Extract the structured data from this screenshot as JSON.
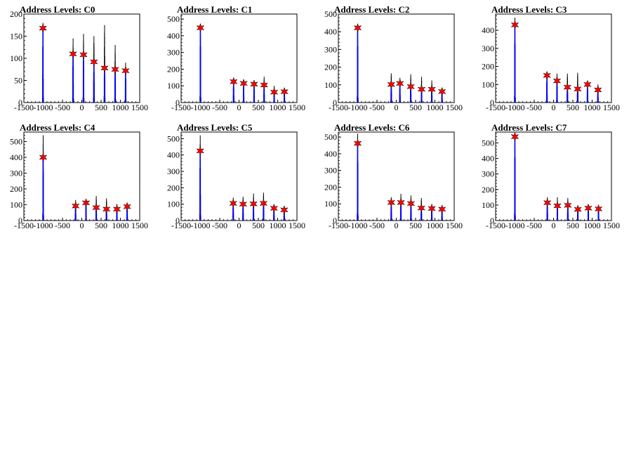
{
  "chart_data": [
    {
      "type": "bar",
      "title": "Address Levels: C0",
      "xlim": [
        -1500,
        1500
      ],
      "ylim": [
        0,
        200
      ],
      "xticks": [
        -1500,
        -1000,
        -500,
        0,
        500,
        1000,
        1500
      ],
      "yticks": [
        0,
        50,
        100,
        150,
        200
      ],
      "peaks": [
        {
          "x": -1005,
          "y": 180,
          "star": 168
        },
        {
          "x": -225,
          "y": 145,
          "star": 110
        },
        {
          "x": 45,
          "y": 155,
          "star": 108
        },
        {
          "x": 315,
          "y": 150,
          "star": 92
        },
        {
          "x": 590,
          "y": 175,
          "star": 78
        },
        {
          "x": 865,
          "y": 130,
          "star": 75
        },
        {
          "x": 1135,
          "y": 90,
          "star": 72
        }
      ]
    },
    {
      "type": "bar",
      "title": "Address Levels: C1",
      "xlim": [
        -1500,
        1500
      ],
      "ylim": [
        0,
        530
      ],
      "xticks": [
        -1500,
        -1000,
        -500,
        0,
        500,
        1000,
        1500
      ],
      "yticks": [
        0,
        100,
        200,
        300,
        400,
        500
      ],
      "peaks": [
        {
          "x": -1000,
          "y": 470,
          "star": 448
        },
        {
          "x": -140,
          "y": 130,
          "star": 125
        },
        {
          "x": 120,
          "y": 130,
          "star": 115
        },
        {
          "x": 390,
          "y": 120,
          "star": 110
        },
        {
          "x": 650,
          "y": 155,
          "star": 105
        },
        {
          "x": 910,
          "y": 100,
          "star": 62
        },
        {
          "x": 1175,
          "y": 85,
          "star": 65
        }
      ]
    },
    {
      "type": "bar",
      "title": "Address Levels: C2",
      "xlim": [
        -1500,
        1500
      ],
      "ylim": [
        0,
        500
      ],
      "xticks": [
        -1500,
        -1000,
        -500,
        0,
        500,
        1000,
        1500
      ],
      "yticks": [
        0,
        100,
        200,
        300,
        400,
        500
      ],
      "peaks": [
        {
          "x": -1000,
          "y": 435,
          "star": 422
        },
        {
          "x": -130,
          "y": 165,
          "star": 102
        },
        {
          "x": 95,
          "y": 140,
          "star": 108
        },
        {
          "x": 375,
          "y": 160,
          "star": 90
        },
        {
          "x": 655,
          "y": 145,
          "star": 75
        },
        {
          "x": 920,
          "y": 125,
          "star": 75
        },
        {
          "x": 1185,
          "y": 75,
          "star": 62
        }
      ]
    },
    {
      "type": "bar",
      "title": "Address Levels: C3",
      "xlim": [
        -1500,
        1500
      ],
      "ylim": [
        0,
        490
      ],
      "xticks": [
        -1500,
        -1000,
        -500,
        0,
        500,
        1000,
        1500
      ],
      "yticks": [
        0,
        100,
        200,
        300,
        400
      ],
      "peaks": [
        {
          "x": -1000,
          "y": 470,
          "star": 430
        },
        {
          "x": -170,
          "y": 160,
          "star": 150
        },
        {
          "x": 90,
          "y": 160,
          "star": 120
        },
        {
          "x": 360,
          "y": 160,
          "star": 85
        },
        {
          "x": 625,
          "y": 165,
          "star": 75
        },
        {
          "x": 880,
          "y": 105,
          "star": 100
        },
        {
          "x": 1150,
          "y": 100,
          "star": 70
        }
      ]
    },
    {
      "type": "bar",
      "title": "Address Levels: C4",
      "xlim": [
        -1500,
        1500
      ],
      "ylim": [
        0,
        560
      ],
      "xticks": [
        -1500,
        -1000,
        -500,
        0,
        500,
        1000,
        1500
      ],
      "yticks": [
        0,
        100,
        200,
        300,
        400,
        500
      ],
      "peaks": [
        {
          "x": -1000,
          "y": 540,
          "star": 400
        },
        {
          "x": -160,
          "y": 130,
          "star": 92
        },
        {
          "x": 110,
          "y": 125,
          "star": 112
        },
        {
          "x": 375,
          "y": 155,
          "star": 82
        },
        {
          "x": 640,
          "y": 140,
          "star": 72
        },
        {
          "x": 910,
          "y": 105,
          "star": 72
        },
        {
          "x": 1175,
          "y": 95,
          "star": 88
        }
      ]
    },
    {
      "type": "bar",
      "title": "Address Levels: C5",
      "xlim": [
        -1500,
        1500
      ],
      "ylim": [
        0,
        540
      ],
      "xticks": [
        -1500,
        -1000,
        -500,
        0,
        500,
        1000,
        1500
      ],
      "yticks": [
        0,
        100,
        200,
        300,
        400,
        500
      ],
      "peaks": [
        {
          "x": -1005,
          "y": 520,
          "star": 425
        },
        {
          "x": -150,
          "y": 140,
          "star": 105
        },
        {
          "x": 105,
          "y": 145,
          "star": 100
        },
        {
          "x": 375,
          "y": 165,
          "star": 102
        },
        {
          "x": 635,
          "y": 170,
          "star": 105
        },
        {
          "x": 905,
          "y": 95,
          "star": 75
        },
        {
          "x": 1170,
          "y": 80,
          "star": 65
        }
      ]
    },
    {
      "type": "bar",
      "title": "Address Levels: C6",
      "xlim": [
        -1500,
        1500
      ],
      "ylim": [
        0,
        530
      ],
      "xticks": [
        -1500,
        -1000,
        -500,
        0,
        500,
        1000,
        1500
      ],
      "yticks": [
        0,
        100,
        200,
        300,
        400,
        500
      ],
      "peaks": [
        {
          "x": -1000,
          "y": 520,
          "star": 462
        },
        {
          "x": -130,
          "y": 140,
          "star": 108
        },
        {
          "x": 120,
          "y": 160,
          "star": 108
        },
        {
          "x": 380,
          "y": 150,
          "star": 102
        },
        {
          "x": 650,
          "y": 135,
          "star": 75
        },
        {
          "x": 920,
          "y": 100,
          "star": 72
        },
        {
          "x": 1185,
          "y": 75,
          "star": 68
        }
      ]
    },
    {
      "type": "bar",
      "title": "Address Levels: C7",
      "xlim": [
        -1500,
        1500
      ],
      "ylim": [
        0,
        570
      ],
      "xticks": [
        -1500,
        -1000,
        -500,
        0,
        500,
        1000,
        1500
      ],
      "yticks": [
        0,
        100,
        200,
        300,
        400,
        500
      ],
      "peaks": [
        {
          "x": -1000,
          "y": 550,
          "star": 540
        },
        {
          "x": -160,
          "y": 150,
          "star": 115
        },
        {
          "x": 100,
          "y": 150,
          "star": 95
        },
        {
          "x": 370,
          "y": 145,
          "star": 98
        },
        {
          "x": 630,
          "y": 95,
          "star": 72
        },
        {
          "x": 900,
          "y": 105,
          "star": 80
        },
        {
          "x": 1165,
          "y": 95,
          "star": 75
        }
      ]
    }
  ],
  "style": {
    "fill_color": "#0000ff",
    "outline_color": "#000000",
    "marker_color": "#ff0000",
    "marker": "star"
  }
}
